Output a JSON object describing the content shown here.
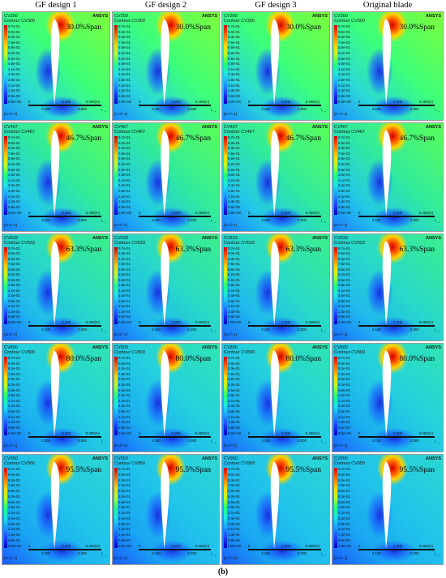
{
  "columns": [
    {
      "label": "GF design 1"
    },
    {
      "label": "GF design 2"
    },
    {
      "label": "GF design 3"
    },
    {
      "label": "Original blade"
    }
  ],
  "rows": [
    {
      "span": "30.0%Span",
      "var": "CV300",
      "contour": "Contour CV300",
      "tone": "high"
    },
    {
      "span": "46.7%Span",
      "var": "CV467",
      "contour": "Contour CV467",
      "tone": "mid"
    },
    {
      "span": "63.3%Span",
      "var": "CV633",
      "contour": "Contour CV633",
      "tone": "low"
    },
    {
      "span": "80.0%Span",
      "var": "CV800",
      "contour": "Contour CV800",
      "tone": "lower"
    },
    {
      "span": "95.5%Span",
      "var": "CV950",
      "contour": "Contour CV950",
      "tone": "lowest"
    }
  ],
  "legend_ticks": [
    "9.7e-01",
    "9.0e-01",
    "8.3e-01",
    "7.6e-01",
    "6.9e-01",
    "6.2e-01",
    "5.5e-01",
    "4.8e-01",
    "4.1e-01",
    "3.4e-01",
    "2.8e-01",
    "2.1e-01",
    "1.4e-01",
    "6.9e-02",
    "0.0e+00"
  ],
  "unit": "[m s^-1]",
  "ansys_label": "ANSYS",
  "scale": {
    "zero": "0",
    "mid1": "0.100",
    "mid2": "0.200",
    "mid3": "0.300",
    "end": "0.400(m)"
  },
  "caption": "(b)",
  "colors": {
    "red": "#d00000",
    "yellow": "#ffd200",
    "green": "#22ff7a",
    "cyan": "#1fe6e6",
    "blue": "#1a3fff"
  }
}
